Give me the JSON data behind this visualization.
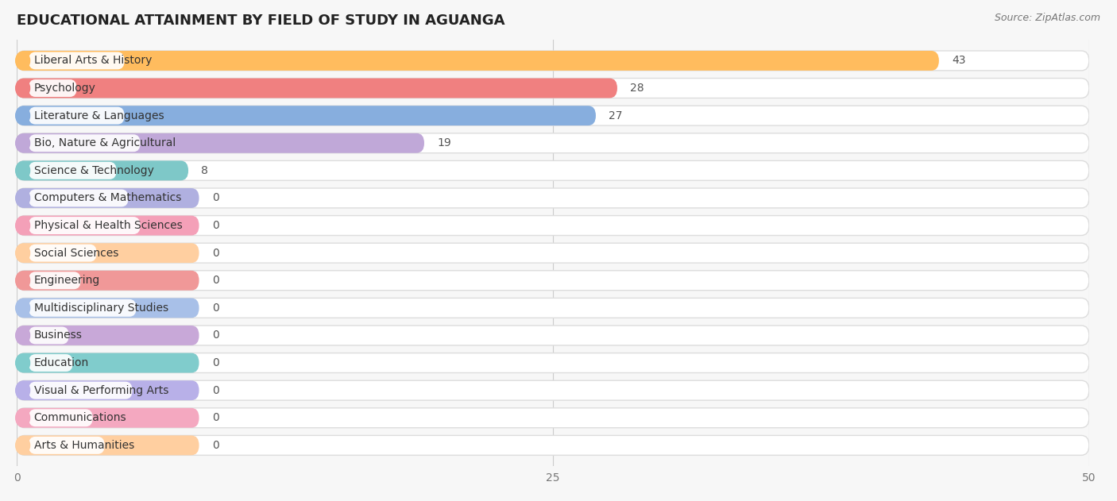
{
  "title": "EDUCATIONAL ATTAINMENT BY FIELD OF STUDY IN AGUANGA",
  "source": "Source: ZipAtlas.com",
  "categories": [
    "Liberal Arts & History",
    "Psychology",
    "Literature & Languages",
    "Bio, Nature & Agricultural",
    "Science & Technology",
    "Computers & Mathematics",
    "Physical & Health Sciences",
    "Social Sciences",
    "Engineering",
    "Multidisciplinary Studies",
    "Business",
    "Education",
    "Visual & Performing Arts",
    "Communications",
    "Arts & Humanities"
  ],
  "values": [
    43,
    28,
    27,
    19,
    8,
    0,
    0,
    0,
    0,
    0,
    0,
    0,
    0,
    0,
    0
  ],
  "bar_colors": [
    "#FFBC5E",
    "#F08080",
    "#87AEDE",
    "#C0A8D8",
    "#7EC8C8",
    "#B0B0E0",
    "#F4A0B8",
    "#FFCFA0",
    "#F09898",
    "#A8C0E8",
    "#C8A8D8",
    "#80CCCC",
    "#B8B0E8",
    "#F4A8C0",
    "#FFCFA0"
  ],
  "xlim": [
    0,
    50
  ],
  "xticks": [
    0,
    25,
    50
  ],
  "background_color": "#f7f7f7",
  "bar_bg_color": "#ececec",
  "title_fontsize": 13,
  "label_fontsize": 10,
  "value_fontsize": 10,
  "bar_height": 0.72,
  "bar_gap": 0.28,
  "zero_bar_stub": 8.5
}
